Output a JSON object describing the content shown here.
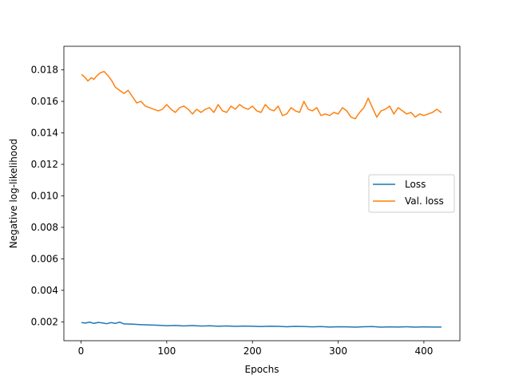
{
  "chart_data": {
    "type": "line",
    "title": "",
    "xlabel": "Epochs",
    "ylabel": "Negative log-likelihood",
    "xlim": [
      -20,
      442
    ],
    "ylim": [
      0.0008,
      0.0195
    ],
    "xticks": [
      0,
      100,
      200,
      300,
      400
    ],
    "yticks": [
      0.002,
      0.004,
      0.006,
      0.008,
      0.01,
      0.012,
      0.014,
      0.016,
      0.018
    ],
    "ytick_labels": [
      "0.002",
      "0.004",
      "0.006",
      "0.008",
      "0.010",
      "0.012",
      "0.014",
      "0.016",
      "0.018"
    ],
    "grid": false,
    "legend_position": "center-right",
    "series": [
      {
        "name": "Loss",
        "color": "#1f77b4",
        "x": [
          1,
          5,
          10,
          15,
          20,
          25,
          30,
          35,
          40,
          45,
          50,
          60,
          70,
          80,
          90,
          100,
          110,
          120,
          130,
          140,
          150,
          160,
          170,
          180,
          190,
          200,
          210,
          220,
          230,
          240,
          250,
          260,
          270,
          280,
          290,
          300,
          310,
          320,
          330,
          340,
          350,
          360,
          370,
          380,
          390,
          400,
          410,
          420
        ],
        "y": [
          0.00195,
          0.00192,
          0.00198,
          0.0019,
          0.00196,
          0.00193,
          0.00188,
          0.00195,
          0.0019,
          0.00198,
          0.00187,
          0.00185,
          0.00182,
          0.0018,
          0.00178,
          0.00175,
          0.00177,
          0.00174,
          0.00176,
          0.00173,
          0.00175,
          0.00172,
          0.00174,
          0.00171,
          0.00173,
          0.00172,
          0.0017,
          0.00172,
          0.00171,
          0.00169,
          0.00171,
          0.0017,
          0.00168,
          0.0017,
          0.00167,
          0.00169,
          0.00168,
          0.00166,
          0.00169,
          0.0017,
          0.00166,
          0.00168,
          0.00167,
          0.00169,
          0.00166,
          0.00168,
          0.00167,
          0.00167
        ]
      },
      {
        "name": "Val. loss",
        "color": "#ff7f0e",
        "x": [
          1,
          5,
          8,
          12,
          15,
          18,
          22,
          27,
          32,
          36,
          40,
          45,
          50,
          55,
          60,
          65,
          70,
          75,
          80,
          85,
          90,
          95,
          100,
          105,
          110,
          115,
          120,
          125,
          130,
          135,
          140,
          145,
          150,
          155,
          160,
          165,
          170,
          175,
          180,
          185,
          190,
          195,
          200,
          205,
          210,
          215,
          220,
          225,
          230,
          235,
          240,
          245,
          250,
          255,
          260,
          265,
          270,
          275,
          280,
          285,
          290,
          295,
          300,
          305,
          310,
          315,
          320,
          325,
          330,
          335,
          340,
          345,
          350,
          355,
          360,
          365,
          370,
          375,
          380,
          385,
          390,
          395,
          400,
          405,
          410,
          415,
          420
        ],
        "y": [
          0.0177,
          0.0175,
          0.0173,
          0.0175,
          0.0174,
          0.0176,
          0.0178,
          0.0179,
          0.0176,
          0.0173,
          0.0169,
          0.0167,
          0.0165,
          0.0167,
          0.0163,
          0.0159,
          0.016,
          0.0157,
          0.0156,
          0.0155,
          0.0154,
          0.0155,
          0.0158,
          0.0155,
          0.0153,
          0.0156,
          0.0157,
          0.0155,
          0.0152,
          0.0155,
          0.0153,
          0.0155,
          0.0156,
          0.0153,
          0.0158,
          0.0154,
          0.0153,
          0.0157,
          0.0155,
          0.0158,
          0.0156,
          0.0155,
          0.0157,
          0.0154,
          0.0153,
          0.0158,
          0.0155,
          0.0154,
          0.0157,
          0.0151,
          0.0152,
          0.0156,
          0.0154,
          0.0153,
          0.016,
          0.0155,
          0.0154,
          0.0156,
          0.0151,
          0.0152,
          0.0151,
          0.0153,
          0.0152,
          0.0156,
          0.0154,
          0.015,
          0.0149,
          0.0153,
          0.0156,
          0.0162,
          0.0156,
          0.015,
          0.0154,
          0.0155,
          0.0157,
          0.0152,
          0.0156,
          0.0154,
          0.0152,
          0.0153,
          0.015,
          0.0152,
          0.0151,
          0.0152,
          0.0153,
          0.0155,
          0.0153
        ]
      }
    ]
  }
}
